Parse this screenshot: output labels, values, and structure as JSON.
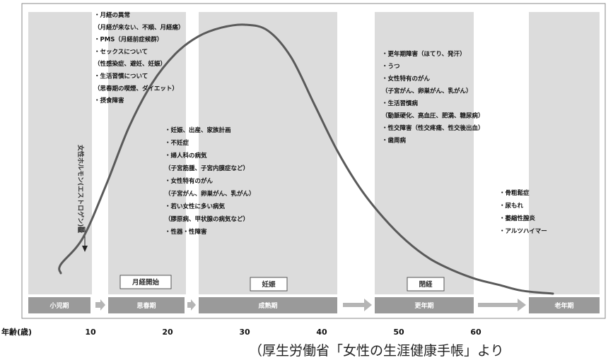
{
  "chart_data": {
    "type": "line",
    "title": "",
    "xlabel": "年齢(歳)",
    "ylabel": "女性ホルモン(エストロゲン)量",
    "xticks": [
      10,
      20,
      30,
      40,
      50,
      60
    ],
    "xlim": [
      0,
      70
    ],
    "ylim": [
      0,
      1
    ],
    "series": [
      {
        "x": [
          0,
          5,
          9,
          12,
          15,
          18,
          21,
          24,
          27,
          30,
          33,
          36,
          39,
          42,
          45,
          48,
          51,
          54,
          57,
          60,
          63,
          66,
          70
        ],
        "y": [
          0.1,
          0.13,
          0.22,
          0.4,
          0.6,
          0.75,
          0.85,
          0.91,
          0.94,
          0.95,
          0.93,
          0.84,
          0.68,
          0.52,
          0.39,
          0.29,
          0.21,
          0.15,
          0.11,
          0.08,
          0.06,
          0.04,
          0.03
        ]
      }
    ],
    "stages": [
      "小児期",
      "思春期",
      "成熟期",
      "更年期",
      "老年期"
    ],
    "events": [
      "月経開始",
      "妊娠",
      "閉経"
    ],
    "annotations": [
      [
        "・月経の異常",
        "（月経が来ない、不順、月経痛）",
        "・PMS（月経前症候群）",
        "・セックスについて",
        "（性感染症、避妊、妊娠）",
        "・生活習慣について",
        "（思春期の喫煙、ダイエット）",
        "・摂食障害"
      ],
      [
        "・妊娠、出産、家族計画",
        "・不妊症",
        "・婦人科の病気",
        "（子宮筋腫、子宮内膜症など）",
        "・女性特有のがん",
        "（子宮がん、卵巣がん、乳がん）",
        "・若い女性に多い病気",
        "（膠原病、甲状腺の病気など）",
        "・性器・性障害"
      ],
      [
        "・更年期障害（ほてり、発汗）",
        "・うつ",
        "・女性特有のがん",
        "（子宮がん、卵巣がん、乳がん）",
        "・生活習慣病",
        "（動脈硬化、高血圧、肥満、糖尿病）",
        "・性交障害（性交疼痛、性交後出血）",
        "・歯周病"
      ],
      [
        "・骨粗鬆症",
        "・尿もれ",
        "・萎縮性膣炎",
        "・アルツハイマー"
      ]
    ]
  },
  "source": "（厚生労働省「女性の生涯健康手帳」より"
}
